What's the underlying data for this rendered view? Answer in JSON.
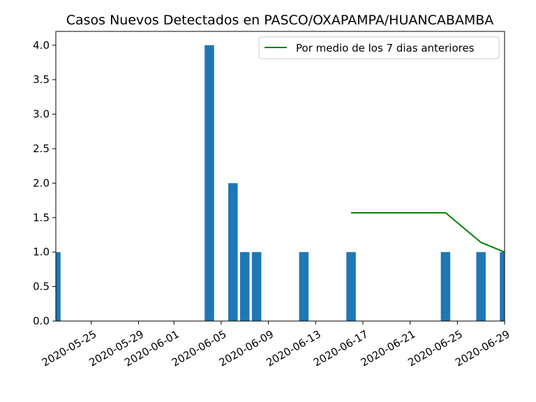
{
  "chart_data": {
    "type": "bar",
    "title": "Casos Nuevos Detectados en PASCO/OXAPAMPA/HUANCABAMBA",
    "xlabel": "",
    "ylabel": "",
    "x_axis": {
      "type": "date",
      "range": [
        "2020-05-22",
        "2020-06-29"
      ],
      "tick_labels": [
        "2020-05-25",
        "2020-05-29",
        "2020-06-01",
        "2020-06-05",
        "2020-06-09",
        "2020-06-13",
        "2020-06-17",
        "2020-06-21",
        "2020-06-25",
        "2020-06-29"
      ]
    },
    "y_axis": {
      "range": [
        0,
        4.2
      ],
      "tick_labels": [
        "0.0",
        "0.5",
        "1.0",
        "1.5",
        "2.0",
        "2.5",
        "3.0",
        "3.5",
        "4.0"
      ]
    },
    "grid": false,
    "legend_position": "top-right",
    "series": [
      {
        "name": "",
        "kind": "bar",
        "color": "#1f77b4",
        "points": [
          {
            "date": "2020-05-22",
            "value": 1
          },
          {
            "date": "2020-06-04",
            "value": 4
          },
          {
            "date": "2020-06-06",
            "value": 2
          },
          {
            "date": "2020-06-07",
            "value": 1
          },
          {
            "date": "2020-06-08",
            "value": 1
          },
          {
            "date": "2020-06-12",
            "value": 1
          },
          {
            "date": "2020-06-16",
            "value": 1
          },
          {
            "date": "2020-06-24",
            "value": 1
          },
          {
            "date": "2020-06-27",
            "value": 1
          },
          {
            "date": "2020-06-29",
            "value": 1
          }
        ]
      },
      {
        "name": "Por medio de los 7 dias anteriores",
        "kind": "line",
        "color": "#008000",
        "points": [
          {
            "date": "2020-06-16",
            "value": 1.57
          },
          {
            "date": "2020-06-24",
            "value": 1.57
          },
          {
            "date": "2020-06-27",
            "value": 1.14
          },
          {
            "date": "2020-06-29",
            "value": 1.0
          }
        ]
      }
    ]
  }
}
